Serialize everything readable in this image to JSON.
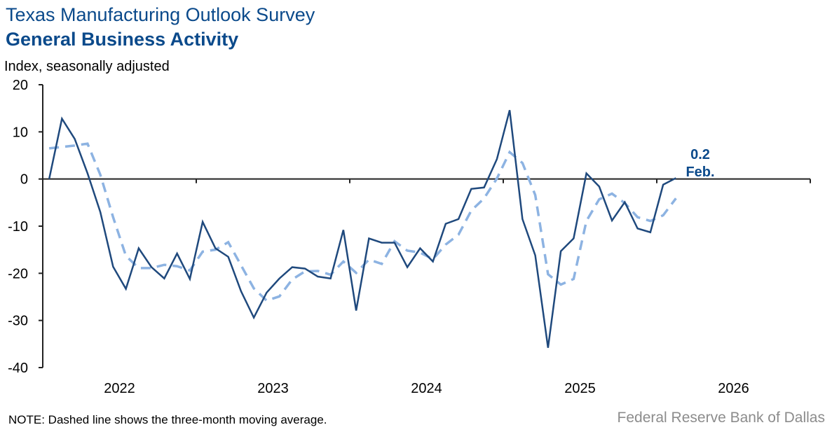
{
  "header": {
    "title": "Texas Manufacturing Outlook Survey",
    "subtitle": "General Business Activity",
    "unit": "Index, seasonally adjusted"
  },
  "footer": {
    "note": "NOTE: Dashed line shows the three-month moving average.",
    "source": "Federal Reserve Bank of Dallas"
  },
  "chart_data": {
    "type": "line",
    "title": "General Business Activity",
    "ylabel": "Index, seasonally adjusted",
    "ylim": [
      -40,
      20
    ],
    "yticks": [
      "20",
      "10",
      "0",
      "-10",
      "-20",
      "-30",
      "-40"
    ],
    "ytick_values": [
      20,
      10,
      0,
      -10,
      -20,
      -30,
      -40
    ],
    "xticks": [
      "2022",
      "2023",
      "2024",
      "2025",
      "2026"
    ],
    "x_start": "2022-01",
    "x_end": "2026-02",
    "grid": false,
    "colors": {
      "index": "#1f497d",
      "moving_average": "#8db3e2",
      "annotation": "#0b4a8b"
    },
    "annotation": {
      "value": "0.2",
      "label": "Feb."
    },
    "series": [
      {
        "style": "solid",
        "values": [
          0,
          12.8,
          8.5,
          1.2,
          -7.0,
          -18.6,
          -23.3,
          -14.7,
          -18.7,
          -21.1,
          -15.8,
          -21.2,
          -9.1,
          -14.7,
          -16.5,
          -23.8,
          -29.4,
          -24.1,
          -21.1,
          -18.7,
          -19.0,
          -20.7,
          -21.1,
          -10.8,
          -27.9,
          -12.6,
          -13.5,
          -13.5,
          -18.7,
          -14.7,
          -17.5,
          -9.5,
          -8.5,
          -2.1,
          -1.8,
          4.2,
          14.6,
          -8.5,
          -16.2,
          -35.8,
          -15.3,
          -12.6,
          1.2,
          -1.6,
          -8.8,
          -4.9,
          -10.5,
          -11.3,
          -1.2,
          0.2
        ]
      },
      {
        "style": "dashed",
        "values": [
          6.5,
          6.8,
          7.1,
          7.5,
          0.9,
          -8.1,
          -16.3,
          -18.9,
          -18.9,
          -18.2,
          -18.5,
          -19.4,
          -15.4,
          -15.0,
          -13.4,
          -18.3,
          -23.2,
          -25.8,
          -24.9,
          -21.3,
          -19.6,
          -19.5,
          -20.3,
          -17.5,
          -19.9,
          -17.1,
          -18.0,
          -13.2,
          -15.2,
          -15.6,
          -17.0,
          -13.9,
          -11.8,
          -6.7,
          -4.1,
          0.1,
          5.7,
          3.4,
          -3.4,
          -20.2,
          -22.4,
          -21.2,
          -8.9,
          -4.3,
          -3.1,
          -5.1,
          -8.1,
          -8.9,
          -7.7,
          -4.1
        ]
      }
    ]
  }
}
